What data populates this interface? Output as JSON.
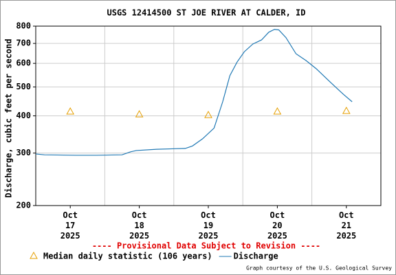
{
  "chart_data": {
    "type": "line",
    "title": "USGS 12414500 ST JOE RIVER AT CALDER, ID",
    "y_label": "Discharge, cubic feet per second",
    "log_y": true,
    "grid": true,
    "xlim": [
      "2025-10-17 00:00",
      "2025-10-22 00:00"
    ],
    "xticks": [
      {
        "value": "2025-10-17",
        "label": "Oct\n17\n2025"
      },
      {
        "value": "2025-10-18",
        "label": "Oct\n18\n2025"
      },
      {
        "value": "2025-10-19",
        "label": "Oct\n19\n2025"
      },
      {
        "value": "2025-10-20",
        "label": "Oct\n20\n2025"
      },
      {
        "value": "2025-10-21",
        "label": "Oct\n21\n2025"
      }
    ],
    "ylim": [
      200,
      800
    ],
    "yticks": [
      200,
      300,
      400,
      500,
      600,
      700,
      800
    ],
    "series": [
      {
        "name": "Median daily statistic (106 years)",
        "color": "#e69f00",
        "marker": "triangle",
        "x": [
          "2025-10-17",
          "2025-10-18",
          "2025-10-19",
          "2025-10-20",
          "2025-10-21"
        ],
        "values": [
          414,
          405,
          403,
          414,
          416
        ]
      },
      {
        "name": "Discharge",
        "color": "#1f78b4",
        "x": [
          "2025-10-17 00:00",
          "2025-10-17 03:00",
          "2025-10-17 14:00",
          "2025-10-17 21:00",
          "2025-10-18 06:00",
          "2025-10-18 09:00",
          "2025-10-18 11:00",
          "2025-10-18 18:00",
          "2025-10-19 04:00",
          "2025-10-19 06:30",
          "2025-10-19 10:00",
          "2025-10-19 14:00",
          "2025-10-19 17:00",
          "2025-10-19 19:30",
          "2025-10-19 22:00",
          "2025-10-20 00:30",
          "2025-10-20 03:30",
          "2025-10-20 06:30",
          "2025-10-20 09:00",
          "2025-10-20 11:00",
          "2025-10-20 12:30",
          "2025-10-20 15:00",
          "2025-10-20 18:30",
          "2025-10-20 22:00",
          "2025-10-21 01:30",
          "2025-10-21 06:30",
          "2025-10-21 11:00",
          "2025-10-21 14:00"
        ],
        "values": [
          298,
          296,
          295,
          295,
          296,
          303,
          306,
          309,
          311,
          317,
          335,
          364,
          446,
          546,
          606,
          656,
          697,
          719,
          763,
          780,
          777,
          732,
          646,
          613,
          576,
          518,
          472,
          446
        ]
      }
    ],
    "notice": "---- Provisional Data Subject to Revision ----",
    "credit": "Graph courtesy of the U.S. Geological Survey"
  }
}
